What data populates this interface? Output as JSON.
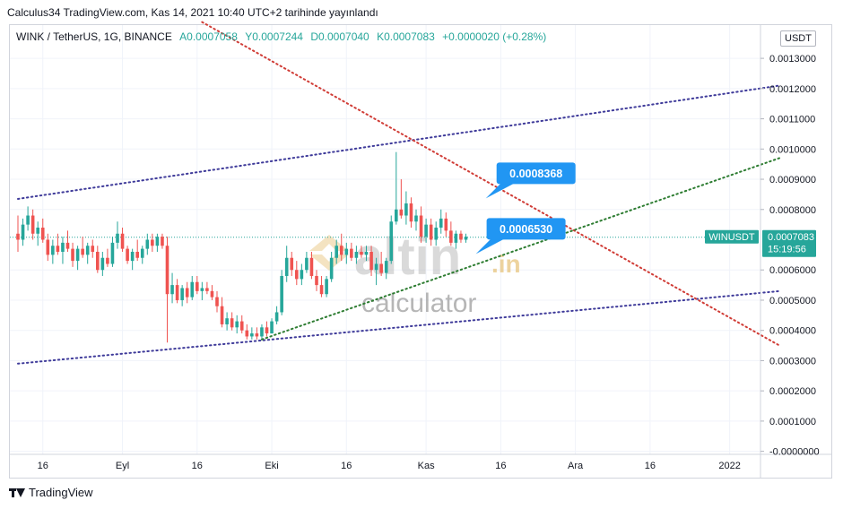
{
  "header": {
    "title": "Calculus34 TradingView.com, Kas 14, 2021 10:40 UTC+2 tarihinde yayınlandı"
  },
  "legend": {
    "symbol": "WINK / TetherUS, 1G, BINANCE",
    "open": "A0.0007058",
    "high": "Y0.0007244",
    "low": "D0.0007040",
    "close": "K0.0007083",
    "change": "+0.0000020 (+0.28%)"
  },
  "currency_button": "USDT",
  "price_tag": {
    "symbol": "WINUSDT",
    "price": "0.0007083",
    "countdown": "15:19:56"
  },
  "callouts": [
    "0.0008368",
    "0.0006530"
  ],
  "watermark": {
    "brand": "altin",
    "suffix": ".in",
    "sub": "calculator"
  },
  "footer": {
    "brand": "TradingView"
  },
  "colors": {
    "up": "#26a69a",
    "down": "#ef5350",
    "channel": "#3f3b9a",
    "resistance": "#d03c36",
    "support": "#2e7d32",
    "callout": "#2196f3"
  },
  "chart_data": {
    "type": "candlestick",
    "y_axis": {
      "range": [
        -1e-05,
        0.00141
      ],
      "ticks": [
        "0.0013000",
        "0.0012000",
        "0.0011000",
        "0.0010000",
        "0.0009000",
        "0.0008000",
        "0.0006000",
        "0.0005000",
        "0.0004000",
        "0.0003000",
        "0.0002000",
        "0.0001000",
        "-0.0000000"
      ]
    },
    "x_axis": {
      "labels": [
        {
          "d": "2021-08-16",
          "t": "16"
        },
        {
          "d": "2021-09-01",
          "t": "Eyl"
        },
        {
          "d": "2021-09-16",
          "t": "16"
        },
        {
          "d": "2021-10-01",
          "t": "Eki"
        },
        {
          "d": "2021-10-16",
          "t": "16"
        },
        {
          "d": "2021-11-01",
          "t": "Kas"
        },
        {
          "d": "2021-11-16",
          "t": "16"
        },
        {
          "d": "2021-12-01",
          "t": "Ara"
        },
        {
          "d": "2021-12-16",
          "t": "16"
        },
        {
          "d": "2022-01-01",
          "t": "2022"
        }
      ]
    },
    "first_date": "2021-08-11",
    "candles": [
      [
        0.00072,
        0.00078,
        0.00066,
        0.0007
      ],
      [
        0.0007,
        0.00077,
        0.00068,
        0.00075
      ],
      [
        0.00075,
        0.00081,
        0.00073,
        0.00078
      ],
      [
        0.00078,
        0.0008,
        0.0007,
        0.00072
      ],
      [
        0.00072,
        0.00076,
        0.00068,
        0.00074
      ],
      [
        0.00074,
        0.00077,
        0.00069,
        0.0007
      ],
      [
        0.0007,
        0.00072,
        0.00063,
        0.00065
      ],
      [
        0.00065,
        0.0007,
        0.00062,
        0.00068
      ],
      [
        0.00068,
        0.00072,
        0.00065,
        0.00066
      ],
      [
        0.00066,
        0.00071,
        0.00062,
        0.00069
      ],
      [
        0.00069,
        0.00073,
        0.00066,
        0.00067
      ],
      [
        0.00067,
        0.00069,
        0.00061,
        0.00063
      ],
      [
        0.00063,
        0.00068,
        0.0006,
        0.00067
      ],
      [
        0.00067,
        0.00071,
        0.00064,
        0.00065
      ],
      [
        0.00065,
        0.00069,
        0.00062,
        0.00068
      ],
      [
        0.00068,
        0.0007,
        0.00064,
        0.00066
      ],
      [
        0.00066,
        0.00068,
        0.00059,
        0.0006
      ],
      [
        0.0006,
        0.00066,
        0.00058,
        0.00064
      ],
      [
        0.00064,
        0.00067,
        0.00061,
        0.00062
      ],
      [
        0.00062,
        0.00071,
        0.00061,
        0.00069
      ],
      [
        0.00069,
        0.00076,
        0.00067,
        0.00072
      ],
      [
        0.00072,
        0.00074,
        0.00066,
        0.00067
      ],
      [
        0.00067,
        0.00068,
        0.00062,
        0.00063
      ],
      [
        0.00063,
        0.00067,
        0.0006,
        0.00066
      ],
      [
        0.00066,
        0.0007,
        0.00063,
        0.00064
      ],
      [
        0.00064,
        0.00068,
        0.00062,
        0.00067
      ],
      [
        0.00067,
        0.00072,
        0.00065,
        0.0007
      ],
      [
        0.0007,
        0.00072,
        0.00066,
        0.00068
      ],
      [
        0.00068,
        0.00072,
        0.00066,
        0.00071
      ],
      [
        0.00071,
        0.00072,
        0.00067,
        0.00068
      ],
      [
        0.00068,
        0.00071,
        0.00036,
        0.00052
      ],
      [
        0.00052,
        0.00059,
        0.00049,
        0.00055
      ],
      [
        0.00055,
        0.00057,
        0.00049,
        0.0005
      ],
      [
        0.0005,
        0.00055,
        0.00048,
        0.00054
      ],
      [
        0.00054,
        0.00056,
        0.00049,
        0.00051
      ],
      [
        0.00051,
        0.00058,
        0.0005,
        0.00056
      ],
      [
        0.00056,
        0.00058,
        0.00052,
        0.00053
      ],
      [
        0.00053,
        0.00056,
        0.0005,
        0.00054
      ],
      [
        0.00054,
        0.00056,
        0.00052,
        0.00053
      ],
      [
        0.00053,
        0.00055,
        0.0005,
        0.00051
      ],
      [
        0.00051,
        0.00053,
        0.00046,
        0.00048
      ],
      [
        0.00048,
        0.00051,
        0.00041,
        0.00042
      ],
      [
        0.00042,
        0.00046,
        0.0004,
        0.00044
      ],
      [
        0.00044,
        0.00046,
        0.0004,
        0.00041
      ],
      [
        0.00041,
        0.00045,
        0.00039,
        0.00043
      ],
      [
        0.00043,
        0.00045,
        0.00039,
        0.0004
      ],
      [
        0.0004,
        0.00042,
        0.00037,
        0.00038
      ],
      [
        0.00038,
        0.00041,
        0.00037,
        0.00039
      ],
      [
        0.00039,
        0.00041,
        0.00037,
        0.00038
      ],
      [
        0.00038,
        0.00042,
        0.00037,
        0.00041
      ],
      [
        0.00041,
        0.00043,
        0.00038,
        0.00039
      ],
      [
        0.00039,
        0.00044,
        0.00039,
        0.00043
      ],
      [
        0.00043,
        0.00048,
        0.00042,
        0.00046
      ],
      [
        0.00046,
        0.0006,
        0.00045,
        0.00058
      ],
      [
        0.00058,
        0.00068,
        0.00056,
        0.00064
      ],
      [
        0.00064,
        0.00066,
        0.00058,
        0.0006
      ],
      [
        0.0006,
        0.00063,
        0.00055,
        0.00057
      ],
      [
        0.00057,
        0.00062,
        0.00055,
        0.0006
      ],
      [
        0.0006,
        0.00066,
        0.00059,
        0.00064
      ],
      [
        0.00064,
        0.00066,
        0.00057,
        0.00058
      ],
      [
        0.00058,
        0.0006,
        0.00053,
        0.00055
      ],
      [
        0.00055,
        0.00058,
        0.00051,
        0.00052
      ],
      [
        0.00052,
        0.00058,
        0.00051,
        0.00057
      ],
      [
        0.00057,
        0.00066,
        0.00056,
        0.00064
      ],
      [
        0.00064,
        0.0007,
        0.00062,
        0.00068
      ],
      [
        0.00068,
        0.00072,
        0.00063,
        0.00065
      ],
      [
        0.00065,
        0.00069,
        0.00062,
        0.00067
      ],
      [
        0.00067,
        0.00069,
        0.00063,
        0.00064
      ],
      [
        0.00064,
        0.00068,
        0.00062,
        0.00066
      ],
      [
        0.00066,
        0.00068,
        0.00064,
        0.00065
      ],
      [
        0.00065,
        0.00068,
        0.00063,
        0.00066
      ],
      [
        0.00066,
        0.00068,
        0.00058,
        0.0006
      ],
      [
        0.0006,
        0.00064,
        0.00055,
        0.00062
      ],
      [
        0.00062,
        0.00066,
        0.00058,
        0.00059
      ],
      [
        0.00059,
        0.00064,
        0.00057,
        0.00063
      ],
      [
        0.00063,
        0.00078,
        0.00062,
        0.00076
      ],
      [
        0.00076,
        0.00099,
        0.00075,
        0.0008
      ],
      [
        0.0008,
        0.0009,
        0.00077,
        0.00078
      ],
      [
        0.00078,
        0.00086,
        0.00075,
        0.00082
      ],
      [
        0.00082,
        0.00084,
        0.00074,
        0.00076
      ],
      [
        0.00076,
        0.0008,
        0.00073,
        0.00078
      ],
      [
        0.00078,
        0.00081,
        0.00069,
        0.00071
      ],
      [
        0.00071,
        0.00077,
        0.00069,
        0.00075
      ],
      [
        0.00075,
        0.00077,
        0.00068,
        0.0007
      ],
      [
        0.0007,
        0.00076,
        0.00068,
        0.00074
      ],
      [
        0.00074,
        0.0008,
        0.00072,
        0.00077
      ],
      [
        0.00077,
        0.00079,
        0.00071,
        0.00073
      ],
      [
        0.00073,
        0.00076,
        0.00068,
        0.00069
      ],
      [
        0.00069,
        0.00073,
        0.00067,
        0.00072
      ],
      [
        0.00072,
        0.00073,
        0.00069,
        0.0007
      ],
      [
        0.0007,
        0.00072,
        0.00069,
        0.00071
      ]
    ],
    "lines": [
      {
        "name": "",
        "style": "dotted",
        "color": "#3f3b9a",
        "from": [
          "2021-08-11",
          0.000835
        ],
        "to": [
          "2022-01-11",
          0.00121
        ]
      },
      {
        "name": "",
        "style": "dotted",
        "color": "#3f3b9a",
        "from": [
          "2021-08-11",
          0.00029
        ],
        "to": [
          "2022-01-11",
          0.00053
        ]
      },
      {
        "name": "",
        "style": "dotted",
        "color": "#d03c36",
        "from": [
          "2021-09-17",
          0.00142
        ],
        "to": [
          "2022-01-11",
          0.00035
        ]
      },
      {
        "name": "",
        "style": "dotted",
        "color": "#2e7d32",
        "from": [
          "2021-09-29",
          0.00037
        ],
        "to": [
          "2022-01-11",
          0.00097
        ]
      }
    ],
    "current_price": 0.0007083,
    "callouts": [
      {
        "text": "0.0008368",
        "date": "2021-11-13",
        "price": 0.0008368
      },
      {
        "text": "0.0006530",
        "date": "2021-11-11",
        "price": 0.000653
      }
    ]
  }
}
